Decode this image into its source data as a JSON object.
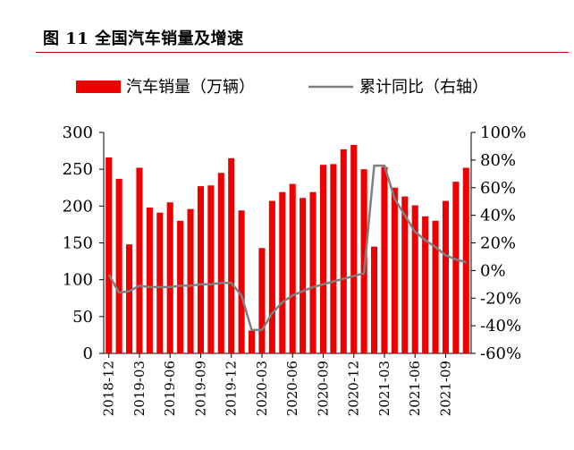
{
  "title": "图 11 全国汽车销量及增速",
  "chart_data": {
    "type": "bar+line",
    "categories": [
      "2018-12",
      "2019-01",
      "2019-02",
      "2019-03",
      "2019-04",
      "2019-05",
      "2019-06",
      "2019-07",
      "2019-08",
      "2019-09",
      "2019-10",
      "2019-11",
      "2019-12",
      "2020-01",
      "2020-02",
      "2020-03",
      "2020-04",
      "2020-05",
      "2020-06",
      "2020-07",
      "2020-08",
      "2020-09",
      "2020-10",
      "2020-11",
      "2020-12",
      "2021-01",
      "2021-02",
      "2021-03",
      "2021-04",
      "2021-05",
      "2021-06",
      "2021-07",
      "2021-08",
      "2021-09",
      "2021-10",
      "2021-11"
    ],
    "x_tick_labels": [
      "2018-12",
      "2019-03",
      "2019-06",
      "2019-09",
      "2019-12",
      "2020-03",
      "2020-06",
      "2020-09",
      "2020-12",
      "2021-03",
      "2021-06",
      "2021-09"
    ],
    "series": [
      {
        "name": "汽车销量（万辆）",
        "type": "bar",
        "axis": "left",
        "color": "#ee0000",
        "values": [
          266,
          237,
          148,
          252,
          198,
          191,
          205,
          180,
          196,
          227,
          228,
          245,
          265,
          194,
          31,
          143,
          207,
          219,
          230,
          211,
          219,
          256,
          257,
          277,
          283,
          250,
          145,
          253,
          225,
          213,
          201,
          186,
          180,
          207,
          233,
          252
        ]
      },
      {
        "name": "累计同比（右轴）",
        "type": "line",
        "axis": "right",
        "color": "#7f7f7f",
        "values": [
          -3,
          -16,
          -15,
          -11,
          -12,
          -12,
          -12,
          -11,
          -11,
          -10,
          -10,
          -9,
          -9,
          -18,
          -43,
          -43,
          -31,
          -23,
          -18,
          -15,
          -12,
          -10,
          -8,
          -6,
          -4,
          -2,
          76,
          76,
          52,
          40,
          28,
          22,
          17,
          11,
          8,
          6
        ]
      }
    ],
    "y_left": {
      "range": [
        0,
        300
      ],
      "ticks": [
        0,
        50,
        100,
        150,
        200,
        250,
        300
      ],
      "tick_labels": [
        "0",
        "50",
        "100",
        "150",
        "200",
        "250",
        "300"
      ]
    },
    "y_right": {
      "range": [
        -60,
        100
      ],
      "ticks": [
        -60,
        -40,
        -20,
        0,
        20,
        40,
        60,
        80,
        100
      ],
      "tick_labels": [
        "-60%",
        "-40%",
        "-20%",
        "0%",
        "20%",
        "40%",
        "60%",
        "80%",
        "100%"
      ]
    },
    "legend_placement": "top",
    "grid": false
  }
}
